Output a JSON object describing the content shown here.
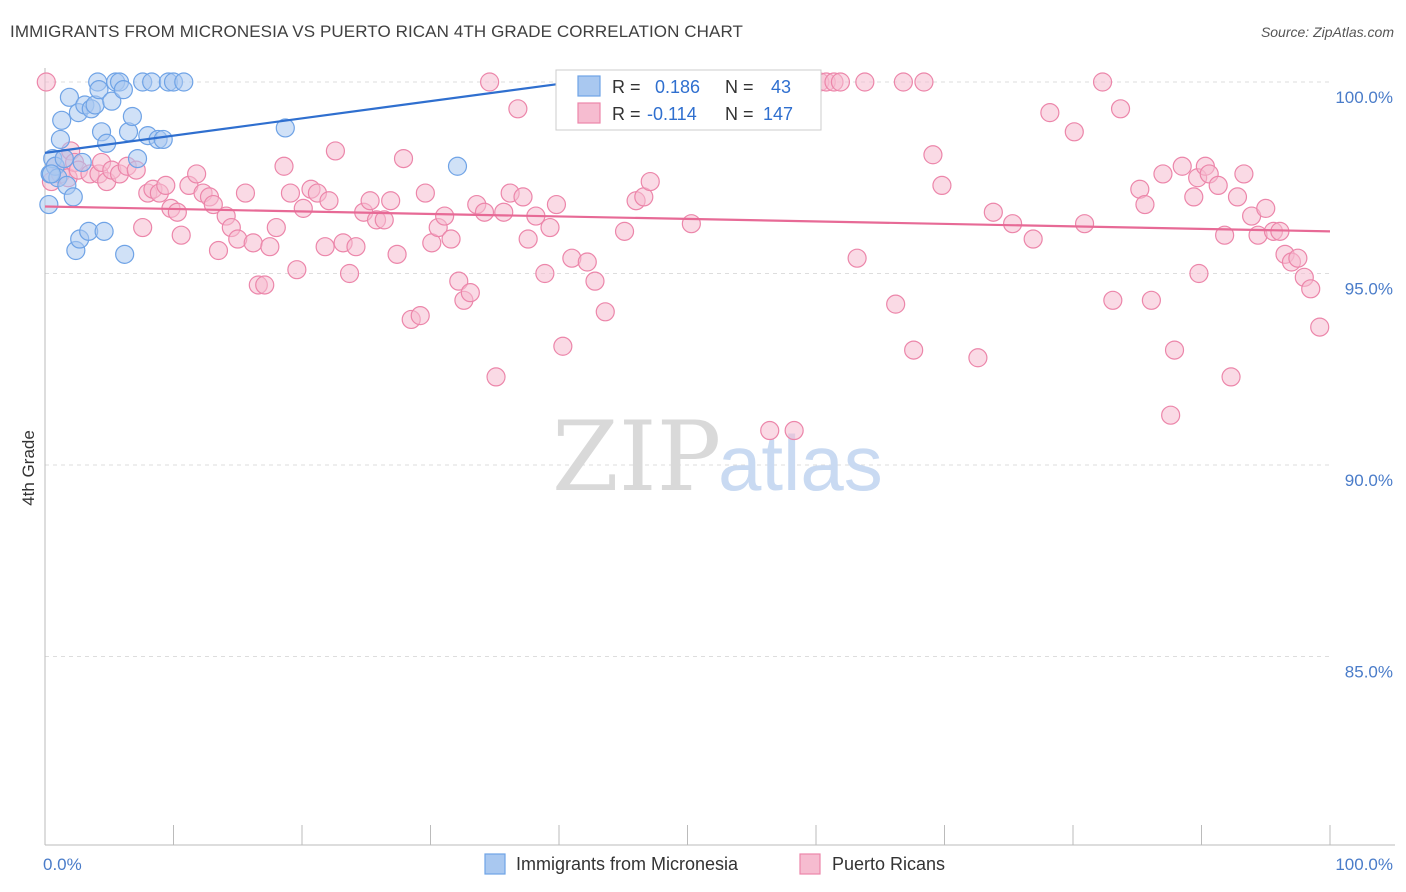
{
  "title": "IMMIGRANTS FROM MICRONESIA VS PUERTO RICAN 4TH GRADE CORRELATION CHART",
  "source": "Source: ZipAtlas.com",
  "watermark": {
    "zip": "ZIP",
    "atlas": "atlas"
  },
  "colors": {
    "blue": "#6fa3e6",
    "blue_fill": "#a9c8f0",
    "blue_line": "#2f6fcf",
    "pink": "#ec86aa",
    "pink_fill": "#f6bcd0",
    "pink_line": "#e76a96",
    "tick_text": "#4a7cc9",
    "grid": "#dddddd"
  },
  "legend_box": {
    "rows": [
      {
        "r_label": "R =",
        "r_value": "0.186",
        "n_label": "N =",
        "n_value": "43"
      },
      {
        "r_label": "R =",
        "r_value": "-0.114",
        "n_label": "N =",
        "n_value": "147"
      }
    ]
  },
  "bottom_legend": [
    "Immigrants from Micronesia",
    "Puerto Ricans"
  ],
  "chart_data": {
    "type": "scatter",
    "ylabel": "4th Grade",
    "xlabel": "",
    "x_ticks": [
      "0.0%",
      "100.0%"
    ],
    "y_ticks": [
      {
        "value": 100,
        "label": "100.0%"
      },
      {
        "value": 95,
        "label": "95.0%"
      },
      {
        "value": 90,
        "label": "90.0%"
      },
      {
        "value": 85,
        "label": "85.0%"
      }
    ],
    "xlim": [
      0,
      100
    ],
    "ylim": [
      80.3,
      100.4
    ],
    "grid": true,
    "series": [
      {
        "name": "Immigrants from Micronesia",
        "trend": {
          "x0": 0,
          "y0": 98.15,
          "x1": 40,
          "y1": 99.95
        },
        "points": [
          [
            0.3,
            96.8
          ],
          [
            0.4,
            97.6
          ],
          [
            0.6,
            98.0
          ],
          [
            0.8,
            97.8
          ],
          [
            1.0,
            97.5
          ],
          [
            1.2,
            98.5
          ],
          [
            1.3,
            99.0
          ],
          [
            1.5,
            98.0
          ],
          [
            1.7,
            97.3
          ],
          [
            1.9,
            99.6
          ],
          [
            2.2,
            97.0
          ],
          [
            2.4,
            95.6
          ],
          [
            2.6,
            99.2
          ],
          [
            2.7,
            95.9
          ],
          [
            2.9,
            97.9
          ],
          [
            3.1,
            99.4
          ],
          [
            3.4,
            96.1
          ],
          [
            3.6,
            99.3
          ],
          [
            3.9,
            99.4
          ],
          [
            4.1,
            100.0
          ],
          [
            4.2,
            99.8
          ],
          [
            4.4,
            98.7
          ],
          [
            4.6,
            96.1
          ],
          [
            4.8,
            98.4
          ],
          [
            5.2,
            99.5
          ],
          [
            5.5,
            100.0
          ],
          [
            5.8,
            100.0
          ],
          [
            6.1,
            99.8
          ],
          [
            6.5,
            98.7
          ],
          [
            6.8,
            99.1
          ],
          [
            7.2,
            98.0
          ],
          [
            7.6,
            100.0
          ],
          [
            8.0,
            98.6
          ],
          [
            8.3,
            100.0
          ],
          [
            8.8,
            98.5
          ],
          [
            9.2,
            98.5
          ],
          [
            9.6,
            100.0
          ],
          [
            10.0,
            100.0
          ],
          [
            10.8,
            100.0
          ],
          [
            6.2,
            95.5
          ],
          [
            18.7,
            98.8
          ],
          [
            32.1,
            97.8
          ],
          [
            0.5,
            97.6
          ]
        ]
      },
      {
        "name": "Puerto Ricans",
        "trend": {
          "x0": 0,
          "y0": 96.75,
          "x1": 100,
          "y1": 96.1
        },
        "points": [
          [
            0.5,
            97.4
          ],
          [
            0.8,
            97.8
          ],
          [
            1.2,
            97.6
          ],
          [
            1.5,
            98.0
          ],
          [
            1.8,
            97.5
          ],
          [
            2.0,
            98.2
          ],
          [
            2.3,
            97.9
          ],
          [
            2.6,
            97.7
          ],
          [
            3.5,
            97.6
          ],
          [
            4.2,
            97.6
          ],
          [
            4.4,
            97.9
          ],
          [
            4.8,
            97.4
          ],
          [
            5.2,
            97.7
          ],
          [
            5.8,
            97.6
          ],
          [
            6.4,
            97.8
          ],
          [
            7.1,
            97.7
          ],
          [
            7.6,
            96.2
          ],
          [
            8.0,
            97.1
          ],
          [
            8.4,
            97.2
          ],
          [
            8.9,
            97.1
          ],
          [
            9.4,
            97.3
          ],
          [
            9.8,
            96.7
          ],
          [
            10.3,
            96.6
          ],
          [
            10.6,
            96.0
          ],
          [
            11.2,
            97.3
          ],
          [
            11.8,
            97.6
          ],
          [
            12.3,
            97.1
          ],
          [
            12.8,
            97.0
          ],
          [
            13.1,
            96.8
          ],
          [
            13.5,
            95.6
          ],
          [
            14.1,
            96.5
          ],
          [
            14.5,
            96.2
          ],
          [
            15.0,
            95.9
          ],
          [
            15.6,
            97.1
          ],
          [
            16.2,
            95.8
          ],
          [
            16.6,
            94.7
          ],
          [
            17.1,
            94.7
          ],
          [
            17.5,
            95.7
          ],
          [
            18.0,
            96.2
          ],
          [
            18.6,
            97.8
          ],
          [
            19.1,
            97.1
          ],
          [
            19.6,
            95.1
          ],
          [
            20.1,
            96.7
          ],
          [
            20.7,
            97.2
          ],
          [
            21.2,
            97.1
          ],
          [
            21.8,
            95.7
          ],
          [
            22.1,
            96.9
          ],
          [
            22.6,
            98.2
          ],
          [
            23.2,
            95.8
          ],
          [
            23.7,
            95.0
          ],
          [
            24.2,
            95.7
          ],
          [
            24.8,
            96.6
          ],
          [
            25.3,
            96.9
          ],
          [
            25.8,
            96.4
          ],
          [
            26.4,
            96.4
          ],
          [
            26.9,
            96.9
          ],
          [
            27.4,
            95.5
          ],
          [
            27.9,
            98.0
          ],
          [
            28.5,
            93.8
          ],
          [
            29.2,
            93.9
          ],
          [
            29.6,
            97.1
          ],
          [
            30.1,
            95.8
          ],
          [
            30.6,
            96.2
          ],
          [
            31.1,
            96.5
          ],
          [
            31.6,
            95.9
          ],
          [
            32.2,
            94.8
          ],
          [
            32.6,
            94.3
          ],
          [
            33.1,
            94.5
          ],
          [
            33.6,
            96.8
          ],
          [
            34.2,
            96.6
          ],
          [
            34.6,
            100.0
          ],
          [
            35.1,
            92.3
          ],
          [
            35.7,
            96.6
          ],
          [
            36.2,
            97.1
          ],
          [
            36.8,
            99.3
          ],
          [
            37.2,
            97.0
          ],
          [
            37.6,
            95.9
          ],
          [
            38.2,
            96.5
          ],
          [
            38.9,
            95.0
          ],
          [
            39.3,
            96.2
          ],
          [
            39.8,
            96.8
          ],
          [
            40.3,
            93.1
          ],
          [
            41.0,
            95.4
          ],
          [
            41.8,
            100.0
          ],
          [
            42.2,
            95.3
          ],
          [
            42.8,
            94.8
          ],
          [
            43.6,
            94.0
          ],
          [
            44.1,
            99.9
          ],
          [
            45.1,
            96.1
          ],
          [
            46.0,
            96.9
          ],
          [
            46.6,
            97.0
          ],
          [
            47.1,
            97.4
          ],
          [
            47.8,
            100.0
          ],
          [
            48.4,
            100.0
          ],
          [
            49.1,
            100.0
          ],
          [
            50.3,
            96.3
          ],
          [
            56.4,
            90.9
          ],
          [
            58.3,
            90.9
          ],
          [
            59.1,
            100.0
          ],
          [
            60.3,
            100.0
          ],
          [
            60.8,
            100.0
          ],
          [
            61.4,
            100.0
          ],
          [
            61.9,
            100.0
          ],
          [
            63.2,
            95.4
          ],
          [
            63.8,
            100.0
          ],
          [
            66.2,
            94.2
          ],
          [
            66.8,
            100.0
          ],
          [
            67.6,
            93.0
          ],
          [
            68.4,
            100.0
          ],
          [
            69.1,
            98.1
          ],
          [
            69.8,
            97.3
          ],
          [
            72.6,
            92.8
          ],
          [
            73.8,
            96.6
          ],
          [
            75.3,
            96.3
          ],
          [
            76.9,
            95.9
          ],
          [
            78.2,
            99.2
          ],
          [
            80.1,
            98.7
          ],
          [
            80.9,
            96.3
          ],
          [
            82.3,
            100.0
          ],
          [
            83.1,
            94.3
          ],
          [
            83.7,
            99.3
          ],
          [
            85.2,
            97.2
          ],
          [
            85.6,
            96.8
          ],
          [
            86.1,
            94.3
          ],
          [
            87.0,
            97.6
          ],
          [
            87.6,
            91.3
          ],
          [
            87.9,
            93.0
          ],
          [
            88.5,
            97.8
          ],
          [
            89.4,
            97.0
          ],
          [
            89.7,
            97.5
          ],
          [
            90.3,
            97.8
          ],
          [
            90.6,
            97.6
          ],
          [
            91.3,
            97.3
          ],
          [
            91.8,
            96.0
          ],
          [
            92.3,
            92.3
          ],
          [
            92.8,
            97.0
          ],
          [
            93.3,
            97.6
          ],
          [
            93.9,
            96.5
          ],
          [
            94.4,
            96.0
          ],
          [
            95.0,
            96.7
          ],
          [
            95.6,
            96.1
          ],
          [
            96.1,
            96.1
          ],
          [
            96.5,
            95.5
          ],
          [
            97.0,
            95.3
          ],
          [
            97.5,
            95.4
          ],
          [
            98.0,
            94.9
          ],
          [
            98.5,
            94.6
          ],
          [
            99.2,
            93.6
          ],
          [
            0.1,
            100.0
          ],
          [
            89.8,
            95.0
          ]
        ]
      }
    ]
  }
}
